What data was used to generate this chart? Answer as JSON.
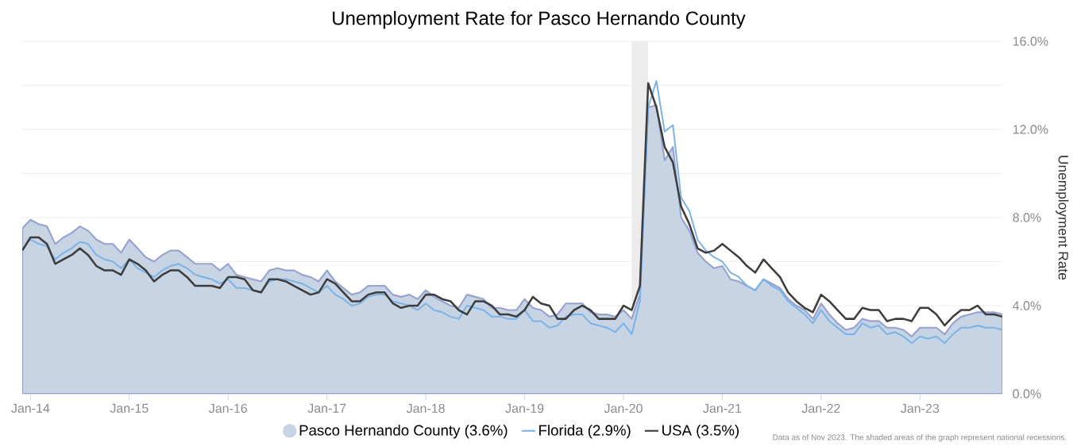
{
  "chart_data": {
    "type": "line",
    "title": "Unemployment Rate for Pasco Hernando County",
    "ylabel": "Unemployment Rate",
    "x": [
      "2013-12",
      "2014-01",
      "2014-02",
      "2014-03",
      "2014-04",
      "2014-05",
      "2014-06",
      "2014-07",
      "2014-08",
      "2014-09",
      "2014-10",
      "2014-11",
      "2014-12",
      "2015-01",
      "2015-02",
      "2015-03",
      "2015-04",
      "2015-05",
      "2015-06",
      "2015-07",
      "2015-08",
      "2015-09",
      "2015-10",
      "2015-11",
      "2015-12",
      "2016-01",
      "2016-02",
      "2016-03",
      "2016-04",
      "2016-05",
      "2016-06",
      "2016-07",
      "2016-08",
      "2016-09",
      "2016-10",
      "2016-11",
      "2016-12",
      "2017-01",
      "2017-02",
      "2017-03",
      "2017-04",
      "2017-05",
      "2017-06",
      "2017-07",
      "2017-08",
      "2017-09",
      "2017-10",
      "2017-11",
      "2017-12",
      "2018-01",
      "2018-02",
      "2018-03",
      "2018-04",
      "2018-05",
      "2018-06",
      "2018-07",
      "2018-08",
      "2018-09",
      "2018-10",
      "2018-11",
      "2018-12",
      "2019-01",
      "2019-02",
      "2019-03",
      "2019-04",
      "2019-05",
      "2019-06",
      "2019-07",
      "2019-08",
      "2019-09",
      "2019-10",
      "2019-11",
      "2019-12",
      "2020-01",
      "2020-02",
      "2020-03",
      "2020-04",
      "2020-05",
      "2020-06",
      "2020-07",
      "2020-08",
      "2020-09",
      "2020-10",
      "2020-11",
      "2020-12",
      "2021-01",
      "2021-02",
      "2021-03",
      "2021-04",
      "2021-05",
      "2021-06",
      "2021-07",
      "2021-08",
      "2021-09",
      "2021-10",
      "2021-11",
      "2021-12",
      "2022-01",
      "2022-02",
      "2022-03",
      "2022-04",
      "2022-05",
      "2022-06",
      "2022-07",
      "2022-08",
      "2022-09",
      "2022-10",
      "2022-11",
      "2022-12",
      "2023-01",
      "2023-02",
      "2023-03",
      "2023-04",
      "2023-05",
      "2023-06",
      "2023-07",
      "2023-08",
      "2023-09",
      "2023-10",
      "2023-11"
    ],
    "series": [
      {
        "name": "Pasco Hernando County (3.6%)",
        "type": "area",
        "color": "#c7d4e3",
        "values": [
          7.5,
          7.9,
          7.7,
          7.6,
          6.8,
          7.1,
          7.3,
          7.6,
          7.4,
          7.0,
          6.8,
          6.8,
          6.4,
          7.0,
          6.6,
          6.2,
          6.0,
          6.3,
          6.5,
          6.5,
          6.2,
          5.9,
          5.9,
          5.9,
          5.6,
          5.9,
          5.4,
          5.3,
          5.2,
          5.1,
          5.6,
          5.7,
          5.6,
          5.6,
          5.4,
          5.3,
          5.1,
          5.6,
          5.1,
          4.8,
          4.5,
          4.6,
          4.9,
          4.9,
          4.9,
          4.5,
          4.4,
          4.5,
          4.3,
          4.7,
          4.4,
          4.2,
          4.0,
          3.9,
          4.5,
          4.4,
          4.3,
          3.9,
          3.9,
          3.8,
          3.8,
          4.3,
          3.9,
          3.8,
          3.5,
          3.6,
          4.1,
          4.1,
          4.1,
          3.7,
          3.6,
          3.6,
          3.5,
          3.8,
          3.4,
          4.5,
          13.0,
          13.1,
          10.6,
          11.2,
          8.0,
          7.4,
          6.4,
          6.0,
          5.7,
          5.8,
          5.2,
          5.1,
          4.9,
          4.7,
          5.2,
          5.0,
          4.8,
          4.3,
          4.0,
          3.8,
          3.4,
          4.1,
          3.6,
          3.2,
          2.9,
          3.0,
          3.4,
          3.3,
          3.3,
          3.0,
          3.0,
          2.9,
          2.6,
          3.0,
          3.0,
          3.0,
          2.7,
          3.2,
          3.5,
          3.6,
          3.7,
          3.7,
          3.7,
          3.6
        ]
      },
      {
        "name": "Florida (2.9%)",
        "color": "#7ab3e8",
        "values": [
          6.6,
          7.0,
          6.8,
          6.7,
          6.1,
          6.4,
          6.6,
          6.9,
          6.8,
          6.3,
          6.1,
          6.0,
          5.7,
          6.1,
          5.7,
          5.5,
          5.3,
          5.6,
          5.8,
          5.9,
          5.7,
          5.4,
          5.3,
          5.2,
          5.0,
          5.2,
          4.8,
          4.8,
          4.7,
          4.6,
          5.1,
          5.2,
          5.2,
          5.1,
          5.0,
          4.8,
          4.6,
          4.9,
          4.5,
          4.3,
          4.0,
          4.1,
          4.4,
          4.5,
          4.5,
          4.2,
          4.1,
          4.0,
          3.8,
          4.1,
          3.8,
          3.7,
          3.5,
          3.4,
          4.0,
          3.9,
          3.8,
          3.5,
          3.5,
          3.4,
          3.4,
          3.8,
          3.3,
          3.3,
          3.0,
          3.1,
          3.5,
          3.6,
          3.6,
          3.2,
          3.1,
          3.0,
          2.8,
          3.2,
          2.7,
          4.2,
          13.0,
          14.2,
          11.9,
          12.2,
          8.9,
          8.3,
          7.0,
          6.5,
          6.2,
          6.0,
          5.5,
          5.3,
          4.9,
          4.7,
          5.2,
          4.9,
          4.7,
          4.2,
          3.9,
          3.6,
          3.2,
          3.8,
          3.3,
          3.0,
          2.7,
          2.7,
          3.2,
          3.0,
          3.1,
          2.7,
          2.8,
          2.6,
          2.3,
          2.6,
          2.5,
          2.6,
          2.3,
          2.7,
          3.0,
          3.0,
          3.1,
          3.0,
          3.0,
          2.9
        ]
      },
      {
        "name": "USA (3.5%)",
        "color": "#3d3d3d",
        "values": [
          6.5,
          7.1,
          7.1,
          6.8,
          5.9,
          6.1,
          6.3,
          6.6,
          6.3,
          5.8,
          5.6,
          5.6,
          5.4,
          6.1,
          5.9,
          5.6,
          5.1,
          5.4,
          5.6,
          5.6,
          5.3,
          4.9,
          4.9,
          4.9,
          4.8,
          5.3,
          5.3,
          5.2,
          4.7,
          4.6,
          5.2,
          5.2,
          5.1,
          4.9,
          4.7,
          4.5,
          4.6,
          5.2,
          5.0,
          4.6,
          4.2,
          4.2,
          4.5,
          4.6,
          4.6,
          4.1,
          3.9,
          4.0,
          4.0,
          4.5,
          4.5,
          4.3,
          4.2,
          3.8,
          3.6,
          4.2,
          4.2,
          4.0,
          3.6,
          3.6,
          3.5,
          3.8,
          4.4,
          4.1,
          4.0,
          3.4,
          3.4,
          3.8,
          4.0,
          3.8,
          3.4,
          3.4,
          3.4,
          4.0,
          3.8,
          4.9,
          14.1,
          13.0,
          11.2,
          10.5,
          8.5,
          7.7,
          6.6,
          6.4,
          6.5,
          6.8,
          6.5,
          6.2,
          5.8,
          5.5,
          6.1,
          5.7,
          5.3,
          4.6,
          4.2,
          3.9,
          3.7,
          4.5,
          4.2,
          3.8,
          3.4,
          3.4,
          3.9,
          3.8,
          3.8,
          3.3,
          3.4,
          3.4,
          3.3,
          3.9,
          3.9,
          3.6,
          3.1,
          3.5,
          3.8,
          3.8,
          4.0,
          3.6,
          3.6,
          3.5
        ]
      }
    ],
    "xlim": [
      "2013-12",
      "2023-11"
    ],
    "xticks": [
      {
        "value": "2014-01",
        "label": "Jan-14"
      },
      {
        "value": "2015-01",
        "label": "Jan-15"
      },
      {
        "value": "2016-01",
        "label": "Jan-16"
      },
      {
        "value": "2017-01",
        "label": "Jan-17"
      },
      {
        "value": "2018-01",
        "label": "Jan-18"
      },
      {
        "value": "2019-01",
        "label": "Jan-19"
      },
      {
        "value": "2020-01",
        "label": "Jan-20"
      },
      {
        "value": "2021-01",
        "label": "Jan-21"
      },
      {
        "value": "2022-01",
        "label": "Jan-22"
      },
      {
        "value": "2023-01",
        "label": "Jan-23"
      }
    ],
    "ylim": [
      0,
      16
    ],
    "yticks": [
      {
        "value": 0,
        "label": "0.0%"
      },
      {
        "value": 2,
        "label": null
      },
      {
        "value": 4,
        "label": "4.0%"
      },
      {
        "value": 6,
        "label": null
      },
      {
        "value": 8,
        "label": "8.0%"
      },
      {
        "value": 10,
        "label": null
      },
      {
        "value": 12,
        "label": "12.0%"
      },
      {
        "value": 14,
        "label": null
      },
      {
        "value": 16,
        "label": "16.0%"
      }
    ],
    "bands": [
      {
        "axis": "x",
        "from": "2020-02",
        "to": "2020-04",
        "color": "#ececec"
      }
    ],
    "grid": "y",
    "legend": "bottom",
    "marker": "none",
    "annotations": [
      "Data as of Nov 2023. The shaded areas of the graph represent national recessions."
    ]
  }
}
